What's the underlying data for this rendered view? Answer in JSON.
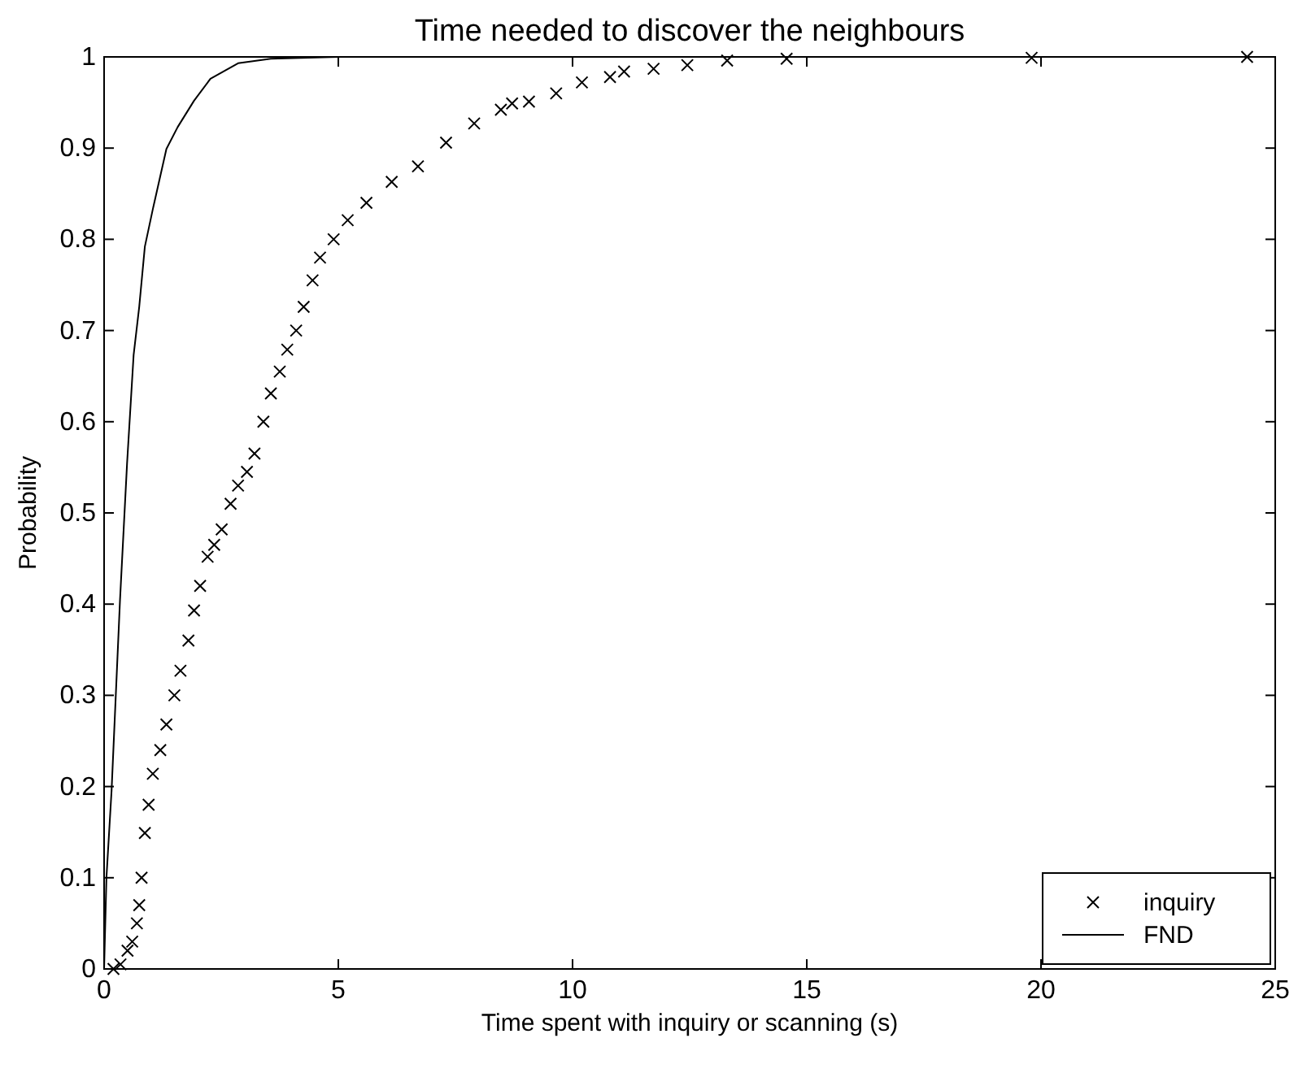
{
  "chart_data": {
    "type": "scatter",
    "title": "Time needed to discover the neighbours",
    "xlabel": "Time spent with inquiry or scanning (s)",
    "ylabel": "Probability",
    "xlim": [
      0,
      25
    ],
    "xticks": [
      0,
      5,
      10,
      15,
      20,
      25
    ],
    "ylim": [
      0,
      1
    ],
    "yticks": [
      0,
      0.1,
      0.2,
      0.3,
      0.4,
      0.5,
      0.6,
      0.7,
      0.8,
      0.9,
      1
    ],
    "grid": false,
    "legend": "bottom right",
    "series": [
      {
        "name": "inquiry",
        "marker": "cross",
        "color": "#000000",
        "x": [
          0.2,
          0.35,
          0.5,
          0.6,
          0.7,
          0.75,
          0.8,
          0.87,
          0.95,
          1.04,
          1.2,
          1.33,
          1.5,
          1.63,
          1.8,
          1.92,
          2.05,
          2.21,
          2.35,
          2.51,
          2.7,
          2.86,
          3.05,
          3.21,
          3.4,
          3.56,
          3.75,
          3.91,
          4.1,
          4.26,
          4.45,
          4.61,
          4.9,
          5.2,
          5.6,
          6.14,
          6.7,
          7.3,
          7.9,
          8.47,
          8.71,
          9.07,
          9.65,
          10.2,
          10.8,
          11.1,
          11.73,
          12.45,
          13.3,
          14.57,
          19.8,
          24.4
        ],
        "values": [
          0,
          0.005,
          0.02,
          0.03,
          0.05,
          0.07,
          0.1,
          0.149,
          0.18,
          0.214,
          0.24,
          0.268,
          0.3,
          0.327,
          0.36,
          0.393,
          0.42,
          0.452,
          0.465,
          0.482,
          0.51,
          0.53,
          0.545,
          0.565,
          0.6,
          0.631,
          0.655,
          0.679,
          0.7,
          0.726,
          0.755,
          0.78,
          0.8,
          0.821,
          0.84,
          0.863,
          0.88,
          0.906,
          0.927,
          0.942,
          0.949,
          0.951,
          0.96,
          0.972,
          0.978,
          0.984,
          0.987,
          0.991,
          0.996,
          0.998,
          0.999,
          1
        ]
      },
      {
        "name": "FND",
        "type": "line",
        "marker": "none",
        "line_style": "solid",
        "color": "#000000",
        "x": [
          0,
          0.05,
          0.16,
          0.34,
          0.49,
          0.63,
          0.75,
          0.87,
          1.04,
          1.33,
          1.57,
          1.92,
          2.27,
          2.86,
          3.56,
          5
        ],
        "values": [
          0,
          0.1,
          0.196,
          0.405,
          0.554,
          0.673,
          0.726,
          0.792,
          0.833,
          0.899,
          0.923,
          0.952,
          0.976,
          0.993,
          0.998,
          1
        ]
      }
    ]
  }
}
